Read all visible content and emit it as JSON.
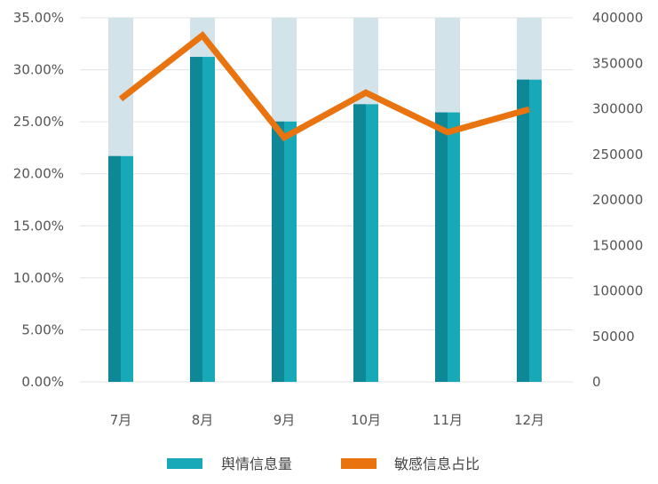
{
  "chart_data": {
    "type": "bar",
    "categories": [
      "7月",
      "8月",
      "9月",
      "10月",
      "11月",
      "12月"
    ],
    "series": [
      {
        "name": "舆情信息量",
        "type": "bar",
        "axis": "right",
        "values": [
          248000,
          357000,
          286000,
          305000,
          296000,
          332000
        ],
        "color": "#17A9B7",
        "shade_color": "#0E8897"
      },
      {
        "name": "敏感信息占比",
        "type": "line",
        "axis": "left",
        "values": [
          0.272,
          0.333,
          0.235,
          0.278,
          0.24,
          0.262
        ],
        "color": "#E8730F"
      }
    ],
    "bar_background_color": "#D3E3EA",
    "y_left": {
      "min": 0,
      "max": 0.35,
      "ticks": [
        "0.00%",
        "5.00%",
        "10.00%",
        "15.00%",
        "20.00%",
        "25.00%",
        "30.00%",
        "35.00%"
      ]
    },
    "y_right": {
      "min": 0,
      "max": 400000,
      "ticks": [
        "0",
        "50000",
        "100000",
        "150000",
        "200000",
        "250000",
        "300000",
        "350000",
        "400000"
      ]
    },
    "grid": true,
    "grid_color": "#E3E3E3",
    "legend_position": "bottom"
  }
}
